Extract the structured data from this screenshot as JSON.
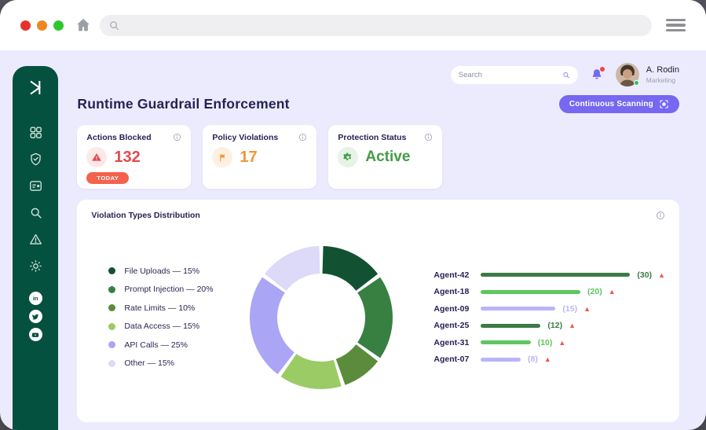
{
  "browser": {
    "traffic_lights": [
      "#e3342c",
      "#ee8722",
      "#2ec72e"
    ],
    "home_icon": "home",
    "search_placeholder": "",
    "menu_icon": "hamburger"
  },
  "sidebar": {
    "logo": "brand-k-mark",
    "nav_icons": [
      "dashboard-grid",
      "shield-check",
      "id-card",
      "search",
      "warning-triangle",
      "settings-gear"
    ],
    "social_icons": [
      "linkedin",
      "twitter",
      "youtube"
    ],
    "background_color": "#04513f"
  },
  "header": {
    "search_placeholder": "Search",
    "bell_has_notification": true,
    "user": {
      "name": "A. Rodin",
      "role": "Marketing",
      "online": true
    }
  },
  "page": {
    "title": "Runtime Guardrail Enforcement",
    "action_button": "Continuous Scanning",
    "accent_color": "#7668f0",
    "background_color": "#ecebfd"
  },
  "stats": [
    {
      "title": "Actions Blocked",
      "value": "132",
      "badge": "TODAY",
      "icon": "warning-triangle",
      "color": "#e5494d",
      "icon_bg": "#fce9e7"
    },
    {
      "title": "Policy Violations",
      "value": "17",
      "icon": "flag",
      "color": "#f09632",
      "icon_bg": "#fdf0e0"
    },
    {
      "title": "Protection Status",
      "value": "Active",
      "icon": "gear",
      "color": "#439b46",
      "icon_bg": "#e7f3e7"
    }
  ],
  "chart_data": {
    "type": "pie",
    "title": "Violation Types Distribution",
    "labels": [
      "File Uploads",
      "Prompt Injection",
      "Rate Limits",
      "Data Access",
      "API Calls",
      "Other"
    ],
    "values": [
      15,
      20,
      10,
      15,
      25,
      15
    ],
    "unit": "%",
    "colors": [
      "#125233",
      "#388042",
      "#5a8c3c",
      "#9acb65",
      "#aaa5f5",
      "#ddd9f8"
    ],
    "legend_position": "left",
    "donut_hole": 0.61,
    "start_angle_deg": 0,
    "direction": "clockwise"
  },
  "agents": {
    "max_value": 30,
    "alert_icon": "warning-triangle",
    "alert_color": "#ea5a47",
    "rows": [
      {
        "name": "Agent-42",
        "value": 30,
        "color": "#3d7a46"
      },
      {
        "name": "Agent-18",
        "value": 20,
        "color": "#5ec75e"
      },
      {
        "name": "Agent-09",
        "value": 15,
        "color": "#b9b4f7"
      },
      {
        "name": "Agent-25",
        "value": 12,
        "color": "#3d7a46"
      },
      {
        "name": "Agent-31",
        "value": 10,
        "color": "#5ec75e"
      },
      {
        "name": "Agent-07",
        "value": 8,
        "color": "#b9b4f7"
      }
    ]
  }
}
